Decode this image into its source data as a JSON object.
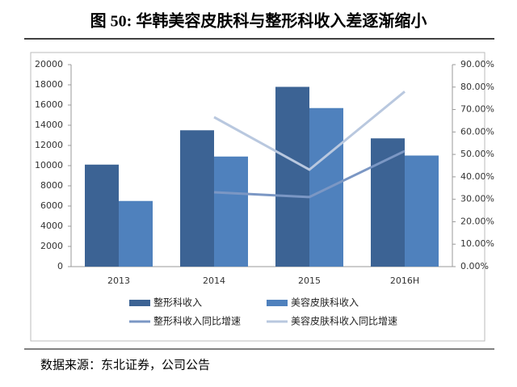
{
  "chart_data": {
    "type": "bar_line",
    "title": "图 50: 华韩美容皮肤科与整形科收入差逐渐缩小",
    "source": "数据来源：东北证券，公司公告",
    "categories": [
      "2013",
      "2014",
      "2015",
      "2016H"
    ],
    "series": [
      {
        "name": "整形科收入",
        "color": "#3c6394",
        "kind": "bar",
        "values": [
          10100,
          13500,
          17800,
          12700
        ]
      },
      {
        "name": "美容皮肤科收入",
        "color": "#4f81bd",
        "kind": "bar",
        "values": [
          6500,
          10900,
          15700,
          11000
        ]
      },
      {
        "name": "整形科收入同比增速",
        "color": "#7b97c4",
        "kind": "line",
        "axis": "y2",
        "values": [
          null,
          33.1,
          31,
          51.5
        ]
      },
      {
        "name": "美容皮肤科收入同比增速",
        "color": "#b9c8df",
        "kind": "line",
        "axis": "y2",
        "values": [
          null,
          66.6,
          43.2,
          78
        ]
      }
    ],
    "ylim": [
      0,
      20000
    ],
    "yticks": [
      0,
      2000,
      4000,
      6000,
      8000,
      10000,
      12000,
      14000,
      16000,
      18000,
      20000
    ],
    "y2lim": [
      0,
      90
    ],
    "y2ticks": [
      {
        "value": 0,
        "label": "0.00%"
      },
      {
        "value": 10,
        "label": "10.00%"
      },
      {
        "value": 20,
        "label": "20.00%"
      },
      {
        "value": 30,
        "label": "30.00%"
      },
      {
        "value": 40,
        "label": "40.00%"
      },
      {
        "value": 50,
        "label": "50.00%"
      },
      {
        "value": 60,
        "label": "60.00%"
      },
      {
        "value": 70,
        "label": "70.00%"
      },
      {
        "value": 80,
        "label": "80.00%"
      },
      {
        "value": 90,
        "label": "90.00%"
      }
    ]
  }
}
